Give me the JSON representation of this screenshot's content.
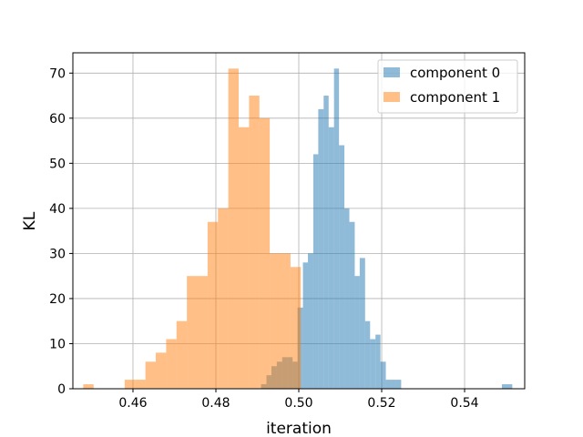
{
  "chart_data": {
    "type": "bar",
    "subtype": "histogram",
    "xlabel": "iteration",
    "ylabel": "KL",
    "xlim": [
      0.4455,
      0.5545
    ],
    "ylim": [
      0,
      74.5
    ],
    "xticks": [
      0.46,
      0.48,
      0.5,
      0.52,
      0.54
    ],
    "xtick_labels": [
      "0.46",
      "0.48",
      "0.50",
      "0.52",
      "0.54"
    ],
    "yticks": [
      0,
      10,
      20,
      30,
      40,
      50,
      60,
      70
    ],
    "ytick_labels": [
      "0",
      "10",
      "20",
      "30",
      "40",
      "50",
      "60",
      "70"
    ],
    "grid": true,
    "legend_position": "top-right",
    "series": [
      {
        "name": "component 0",
        "color": "#1f77b4",
        "alpha": 0.5,
        "bins": [
          [
            0.4909,
            0.4922,
            1
          ],
          [
            0.4922,
            0.4934,
            3
          ],
          [
            0.4934,
            0.4947,
            5
          ],
          [
            0.4947,
            0.496,
            6
          ],
          [
            0.496,
            0.4972,
            7
          ],
          [
            0.4972,
            0.4985,
            7
          ],
          [
            0.4985,
            0.4997,
            6
          ],
          [
            0.4997,
            0.501,
            18
          ],
          [
            0.501,
            0.5022,
            28
          ],
          [
            0.5022,
            0.5035,
            30
          ],
          [
            0.5035,
            0.5047,
            52
          ],
          [
            0.5047,
            0.506,
            62
          ],
          [
            0.506,
            0.5072,
            65
          ],
          [
            0.5072,
            0.5085,
            58
          ],
          [
            0.5085,
            0.5097,
            71
          ],
          [
            0.5097,
            0.511,
            54
          ],
          [
            0.511,
            0.5122,
            40
          ],
          [
            0.5122,
            0.5135,
            37
          ],
          [
            0.5135,
            0.5147,
            25
          ],
          [
            0.5147,
            0.516,
            29
          ],
          [
            0.516,
            0.5172,
            15
          ],
          [
            0.5172,
            0.5185,
            11
          ],
          [
            0.5185,
            0.5197,
            12
          ],
          [
            0.5197,
            0.521,
            6
          ],
          [
            0.521,
            0.5222,
            2
          ],
          [
            0.5222,
            0.5235,
            2
          ],
          [
            0.5235,
            0.5247,
            2
          ],
          [
            0.5247,
            0.542,
            0
          ],
          [
            0.549,
            0.5515,
            1
          ]
        ]
      },
      {
        "name": "component 1",
        "color": "#ff7f0e",
        "alpha": 0.5,
        "bins": [
          [
            0.448,
            0.4505,
            1
          ],
          [
            0.458,
            0.4605,
            2
          ],
          [
            0.4605,
            0.463,
            2
          ],
          [
            0.463,
            0.4655,
            6
          ],
          [
            0.4655,
            0.468,
            8
          ],
          [
            0.468,
            0.4705,
            11
          ],
          [
            0.4705,
            0.473,
            15
          ],
          [
            0.473,
            0.4755,
            25
          ],
          [
            0.4755,
            0.478,
            25
          ],
          [
            0.478,
            0.4805,
            37
          ],
          [
            0.4805,
            0.483,
            40
          ],
          [
            0.483,
            0.4855,
            71
          ],
          [
            0.4855,
            0.488,
            58
          ],
          [
            0.488,
            0.4905,
            65
          ],
          [
            0.4905,
            0.493,
            60
          ],
          [
            0.493,
            0.4955,
            30
          ],
          [
            0.4955,
            0.498,
            30
          ],
          [
            0.498,
            0.5005,
            27
          ]
        ]
      }
    ]
  }
}
